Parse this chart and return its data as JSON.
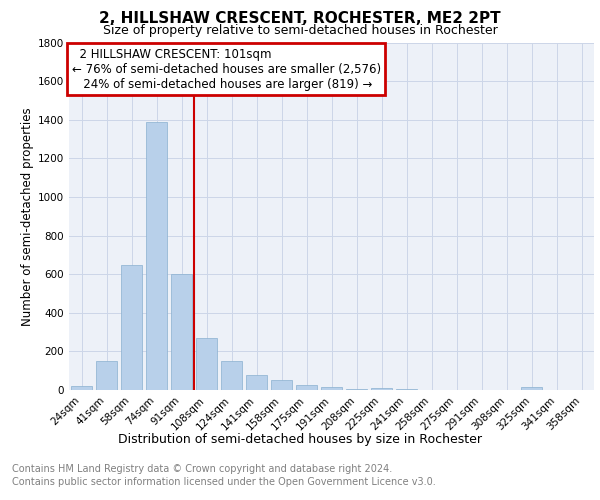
{
  "title": "2, HILLSHAW CRESCENT, ROCHESTER, ME2 2PT",
  "subtitle": "Size of property relative to semi-detached houses in Rochester",
  "xlabel": "Distribution of semi-detached houses by size in Rochester",
  "ylabel": "Number of semi-detached properties",
  "categories": [
    "24sqm",
    "41sqm",
    "58sqm",
    "74sqm",
    "91sqm",
    "108sqm",
    "124sqm",
    "141sqm",
    "158sqm",
    "175sqm",
    "191sqm",
    "208sqm",
    "225sqm",
    "241sqm",
    "258sqm",
    "275sqm",
    "291sqm",
    "308sqm",
    "325sqm",
    "341sqm",
    "358sqm"
  ],
  "values": [
    20,
    150,
    650,
    1390,
    600,
    270,
    150,
    80,
    50,
    25,
    15,
    5,
    10,
    5,
    0,
    0,
    0,
    0,
    15,
    0,
    0
  ],
  "bar_color": "#b8d0ea",
  "bar_edge_color": "#8ab0d0",
  "grid_color": "#ccd6e8",
  "background_color": "#edf1f8",
  "annotation_box_color": "#ffffff",
  "annotation_box_edge": "#cc0000",
  "vline_color": "#cc0000",
  "property_size": "101sqm",
  "property_name": "2 HILLSHAW CRESCENT",
  "pct_smaller": 76,
  "count_smaller": 2576,
  "pct_larger": 24,
  "count_larger": 819,
  "ylim": [
    0,
    1800
  ],
  "yticks": [
    0,
    200,
    400,
    600,
    800,
    1000,
    1200,
    1400,
    1600,
    1800
  ],
  "footnote1": "Contains HM Land Registry data © Crown copyright and database right 2024.",
  "footnote2": "Contains public sector information licensed under the Open Government Licence v3.0.",
  "title_fontsize": 11,
  "subtitle_fontsize": 9,
  "xlabel_fontsize": 9,
  "ylabel_fontsize": 8.5,
  "tick_fontsize": 7.5,
  "annotation_fontsize": 8.5,
  "footnote_fontsize": 7
}
